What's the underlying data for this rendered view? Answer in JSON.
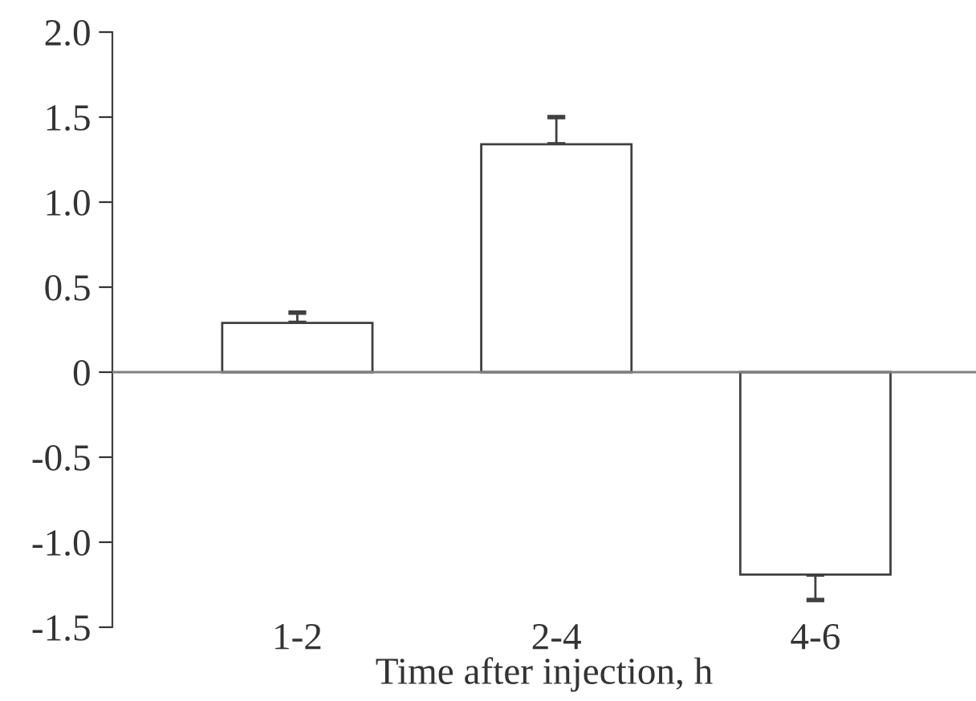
{
  "chart_data": {
    "type": "bar",
    "xlabel": "Time after injection, h",
    "categories": [
      "1-2",
      "2-4",
      "4-6"
    ],
    "values": [
      0.29,
      1.34,
      -1.19
    ],
    "errors": [
      [
        0.29,
        0.35
      ],
      [
        1.34,
        1.5
      ],
      [
        -1.34,
        -1.19
      ]
    ],
    "color": "#ffffff",
    "ylim": [
      -1.5,
      2.0
    ],
    "yticks": [
      -1.5,
      {
        "value": -1,
        "label": "-1.0"
      },
      -0.5,
      {
        "value": 0,
        "label": "0"
      },
      0.5,
      {
        "value": 1,
        "label": "1.0"
      },
      1.5,
      {
        "value": 2,
        "label": "2.0"
      }
    ],
    "ref_lines": [
      {
        "axis": "y",
        "value": 0,
        "color": "#808080"
      }
    ],
    "grid": false,
    "legend": false
  }
}
